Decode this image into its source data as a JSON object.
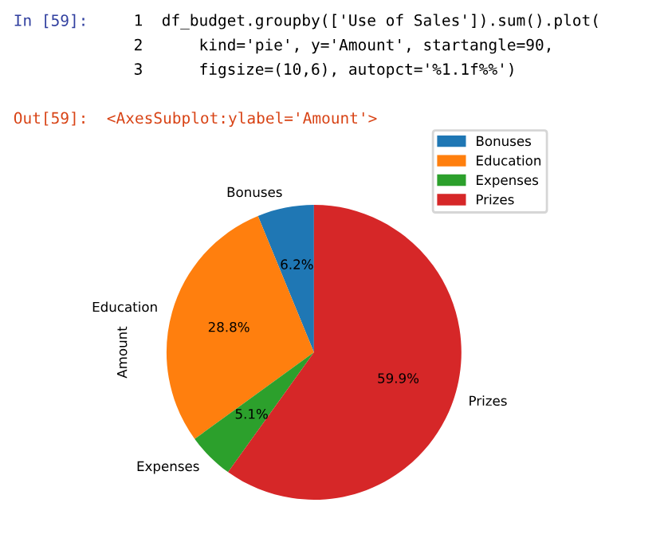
{
  "chart_data": {
    "type": "pie",
    "ylabel": "Amount",
    "categories": [
      "Bonuses",
      "Education",
      "Expenses",
      "Prizes"
    ],
    "values": [
      6.2,
      28.8,
      5.1,
      59.9
    ],
    "value_labels": [
      "6.2%",
      "28.8%",
      "5.1%",
      "59.9%"
    ],
    "colors": [
      "#1f77b4",
      "#ff7f0e",
      "#2ca02c",
      "#d62728"
    ],
    "legend": "top right",
    "annotations": [
      "In [59]:",
      "1  df_budget.groupby(['Use of Sales']).sum().plot(",
      "2      kind='pie', y='Amount', startangle=90,",
      "3      figsize=(10,6), autopct='%1.1f%%')",
      "Out[59]:  <AxesSubplot:ylabel='Amount'>"
    ]
  }
}
